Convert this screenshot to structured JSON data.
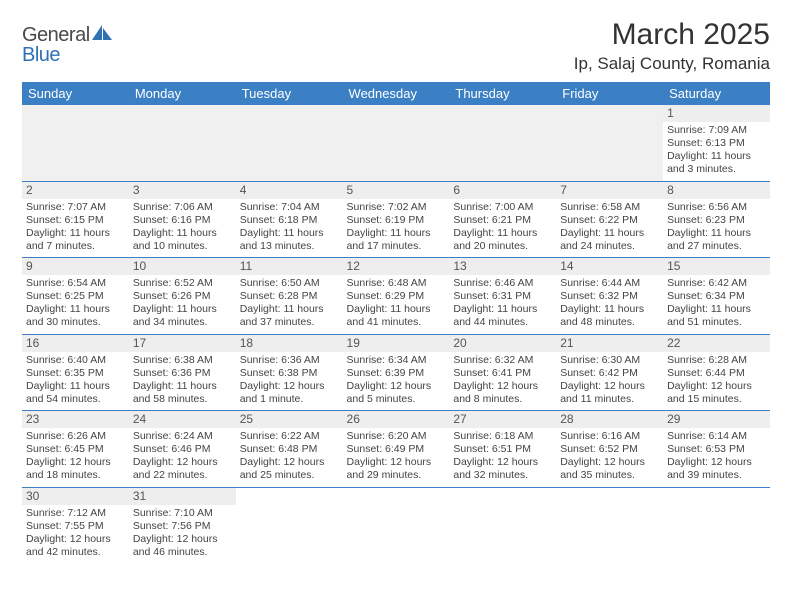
{
  "brand": {
    "part1": "General",
    "part2": "Blue"
  },
  "title": "March 2025",
  "location": "Ip, Salaj County, Romania",
  "colors": {
    "header_bg": "#3b7fc4",
    "header_text": "#ffffff",
    "daynum_bg": "#eeeeee",
    "border": "#3b7fc4",
    "text": "#444444",
    "brand_gray": "#4a4a4a",
    "brand_blue": "#2f71b3"
  },
  "weekdays": [
    "Sunday",
    "Monday",
    "Tuesday",
    "Wednesday",
    "Thursday",
    "Friday",
    "Saturday"
  ],
  "layout": {
    "first_weekday_index": 6,
    "days_in_month": 31
  },
  "days": {
    "1": {
      "sunrise": "7:09 AM",
      "sunset": "6:13 PM",
      "daylight": "11 hours and 3 minutes."
    },
    "2": {
      "sunrise": "7:07 AM",
      "sunset": "6:15 PM",
      "daylight": "11 hours and 7 minutes."
    },
    "3": {
      "sunrise": "7:06 AM",
      "sunset": "6:16 PM",
      "daylight": "11 hours and 10 minutes."
    },
    "4": {
      "sunrise": "7:04 AM",
      "sunset": "6:18 PM",
      "daylight": "11 hours and 13 minutes."
    },
    "5": {
      "sunrise": "7:02 AM",
      "sunset": "6:19 PM",
      "daylight": "11 hours and 17 minutes."
    },
    "6": {
      "sunrise": "7:00 AM",
      "sunset": "6:21 PM",
      "daylight": "11 hours and 20 minutes."
    },
    "7": {
      "sunrise": "6:58 AM",
      "sunset": "6:22 PM",
      "daylight": "11 hours and 24 minutes."
    },
    "8": {
      "sunrise": "6:56 AM",
      "sunset": "6:23 PM",
      "daylight": "11 hours and 27 minutes."
    },
    "9": {
      "sunrise": "6:54 AM",
      "sunset": "6:25 PM",
      "daylight": "11 hours and 30 minutes."
    },
    "10": {
      "sunrise": "6:52 AM",
      "sunset": "6:26 PM",
      "daylight": "11 hours and 34 minutes."
    },
    "11": {
      "sunrise": "6:50 AM",
      "sunset": "6:28 PM",
      "daylight": "11 hours and 37 minutes."
    },
    "12": {
      "sunrise": "6:48 AM",
      "sunset": "6:29 PM",
      "daylight": "11 hours and 41 minutes."
    },
    "13": {
      "sunrise": "6:46 AM",
      "sunset": "6:31 PM",
      "daylight": "11 hours and 44 minutes."
    },
    "14": {
      "sunrise": "6:44 AM",
      "sunset": "6:32 PM",
      "daylight": "11 hours and 48 minutes."
    },
    "15": {
      "sunrise": "6:42 AM",
      "sunset": "6:34 PM",
      "daylight": "11 hours and 51 minutes."
    },
    "16": {
      "sunrise": "6:40 AM",
      "sunset": "6:35 PM",
      "daylight": "11 hours and 54 minutes."
    },
    "17": {
      "sunrise": "6:38 AM",
      "sunset": "6:36 PM",
      "daylight": "11 hours and 58 minutes."
    },
    "18": {
      "sunrise": "6:36 AM",
      "sunset": "6:38 PM",
      "daylight": "12 hours and 1 minute."
    },
    "19": {
      "sunrise": "6:34 AM",
      "sunset": "6:39 PM",
      "daylight": "12 hours and 5 minutes."
    },
    "20": {
      "sunrise": "6:32 AM",
      "sunset": "6:41 PM",
      "daylight": "12 hours and 8 minutes."
    },
    "21": {
      "sunrise": "6:30 AM",
      "sunset": "6:42 PM",
      "daylight": "12 hours and 11 minutes."
    },
    "22": {
      "sunrise": "6:28 AM",
      "sunset": "6:44 PM",
      "daylight": "12 hours and 15 minutes."
    },
    "23": {
      "sunrise": "6:26 AM",
      "sunset": "6:45 PM",
      "daylight": "12 hours and 18 minutes."
    },
    "24": {
      "sunrise": "6:24 AM",
      "sunset": "6:46 PM",
      "daylight": "12 hours and 22 minutes."
    },
    "25": {
      "sunrise": "6:22 AM",
      "sunset": "6:48 PM",
      "daylight": "12 hours and 25 minutes."
    },
    "26": {
      "sunrise": "6:20 AM",
      "sunset": "6:49 PM",
      "daylight": "12 hours and 29 minutes."
    },
    "27": {
      "sunrise": "6:18 AM",
      "sunset": "6:51 PM",
      "daylight": "12 hours and 32 minutes."
    },
    "28": {
      "sunrise": "6:16 AM",
      "sunset": "6:52 PM",
      "daylight": "12 hours and 35 minutes."
    },
    "29": {
      "sunrise": "6:14 AM",
      "sunset": "6:53 PM",
      "daylight": "12 hours and 39 minutes."
    },
    "30": {
      "sunrise": "7:12 AM",
      "sunset": "7:55 PM",
      "daylight": "12 hours and 42 minutes."
    },
    "31": {
      "sunrise": "7:10 AM",
      "sunset": "7:56 PM",
      "daylight": "12 hours and 46 minutes."
    }
  },
  "labels": {
    "sunrise_prefix": "Sunrise: ",
    "sunset_prefix": "Sunset: ",
    "daylight_prefix": "Daylight: "
  }
}
